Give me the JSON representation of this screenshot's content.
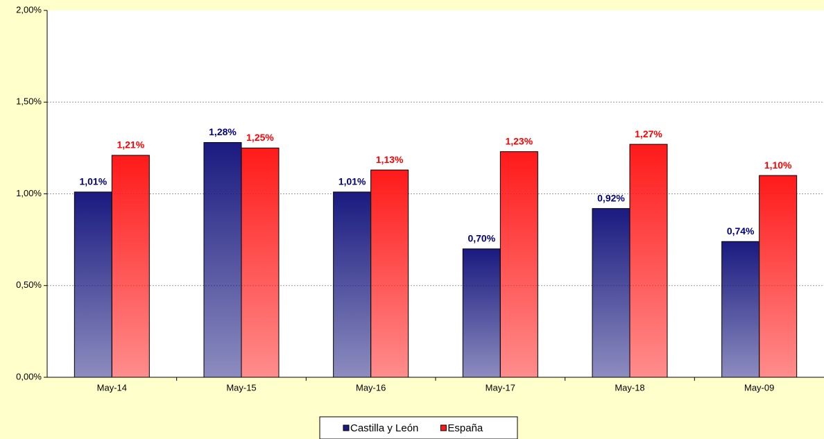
{
  "chart_data": {
    "type": "bar",
    "categories": [
      "May-14",
      "May-15",
      "May-16",
      "May-17",
      "May-18",
      "May-09"
    ],
    "series": [
      {
        "name": "Castilla y León",
        "color": "#1a1a80",
        "label_color": "#000080",
        "values": [
          1.01,
          1.28,
          1.01,
          0.7,
          0.92,
          0.74
        ],
        "value_labels": [
          "1,01%",
          "1,28%",
          "1,01%",
          "0,70%",
          "0,92%",
          "0,74%"
        ]
      },
      {
        "name": "España",
        "color": "#ff1a1a",
        "label_color": "#ff0000",
        "values": [
          1.21,
          1.25,
          1.13,
          1.23,
          1.27,
          1.1
        ],
        "value_labels": [
          "1,21%",
          "1,25%",
          "1,13%",
          "1,23%",
          "1,27%",
          "1,10%"
        ]
      }
    ],
    "ylim": [
      0,
      2
    ],
    "yticks": [
      {
        "value": 0,
        "label": "0,00%"
      },
      {
        "value": 0.5,
        "label": "0,50%"
      },
      {
        "value": 1,
        "label": "1,00%"
      },
      {
        "value": 1.5,
        "label": "1,50%"
      },
      {
        "value": 2,
        "label": "2,00%"
      }
    ],
    "grid": true,
    "legend": "bottom"
  }
}
